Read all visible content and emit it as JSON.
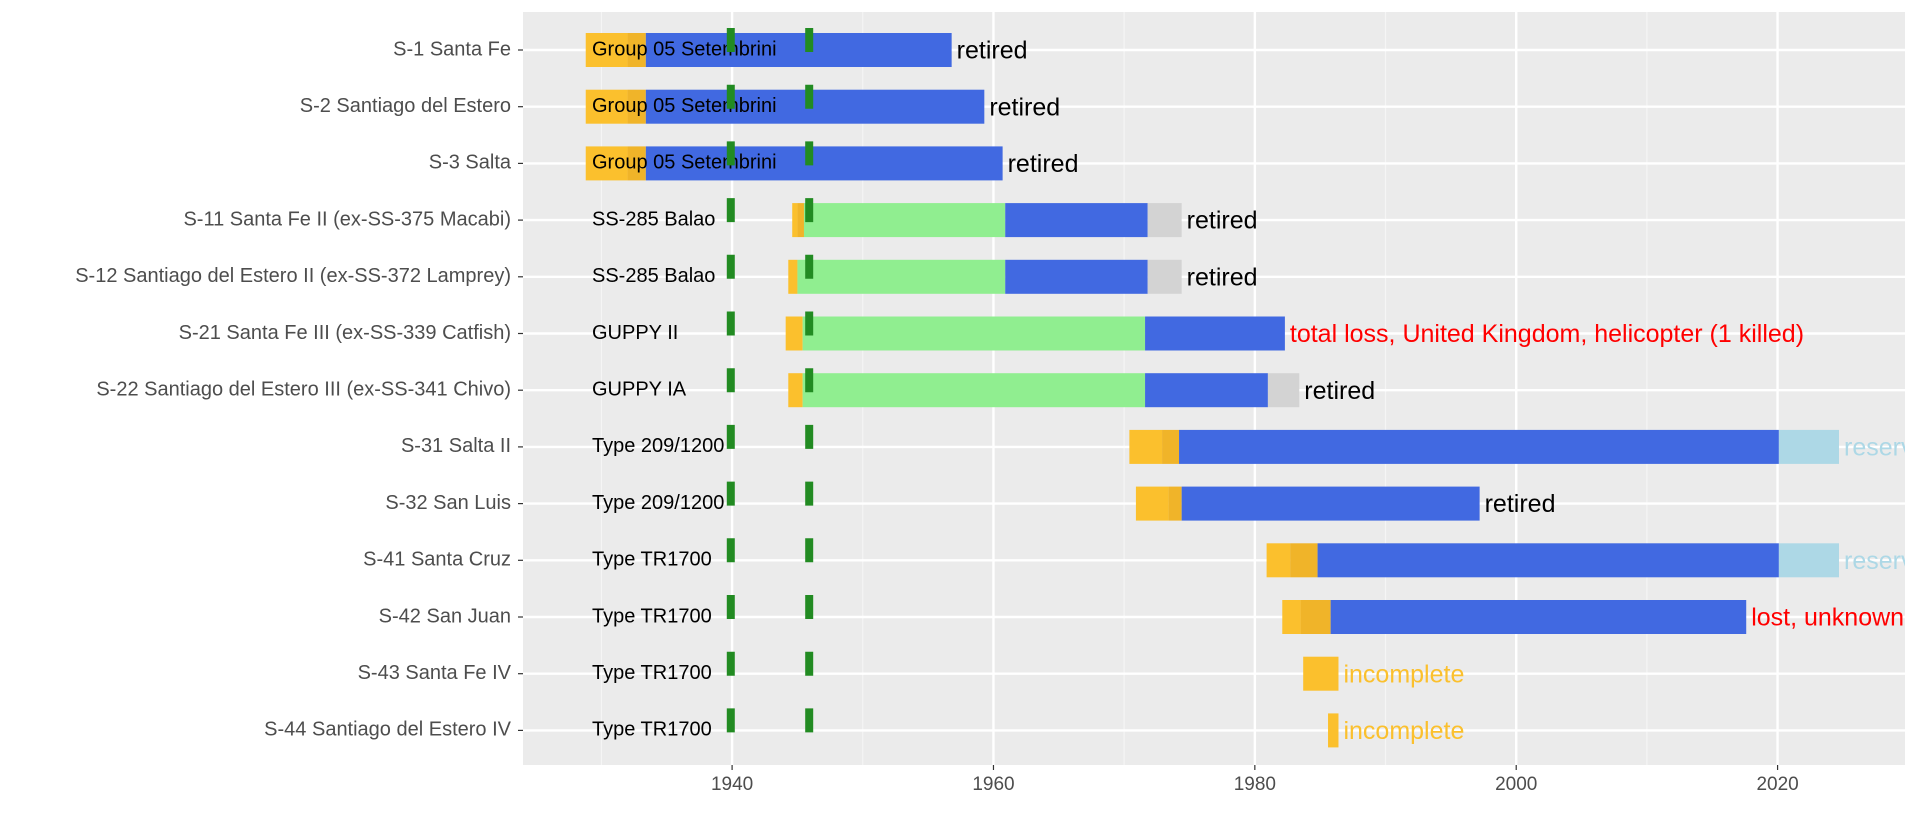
{
  "chart_data": {
    "type": "timeline",
    "xlim": [
      1924,
      2029.75
    ],
    "xticks": [
      1940,
      1960,
      1980,
      2000,
      2020
    ],
    "x_minor_grid": [
      1930,
      1950,
      1970,
      1990,
      2010
    ],
    "grid": true,
    "vlines": [
      {
        "value": 1939.9,
        "color": "#228b22"
      },
      {
        "value": 1945.9,
        "color": "#228b22"
      }
    ],
    "rows": [
      {
        "label": "S-1 Santa Fe",
        "class": "Group 05 Setembrini",
        "status": "retired",
        "status_color": "#000000",
        "segments": [
          {
            "start": 1928.8,
            "end": 1932.0,
            "color": "#fbc02d"
          },
          {
            "start": 1932.0,
            "end": 1933.4,
            "color": "#f0b429"
          },
          {
            "start": 1933.4,
            "end": 1956.8,
            "color": "#4169e1"
          }
        ]
      },
      {
        "label": "S-2 Santiago del Estero",
        "class": "Group 05 Setembrini",
        "status": "retired",
        "status_color": "#000000",
        "segments": [
          {
            "start": 1928.8,
            "end": 1932.0,
            "color": "#fbc02d"
          },
          {
            "start": 1932.0,
            "end": 1933.4,
            "color": "#f0b429"
          },
          {
            "start": 1933.4,
            "end": 1959.3,
            "color": "#4169e1"
          }
        ]
      },
      {
        "label": "S-3 Salta",
        "class": "Group 05 Setembrini",
        "status": "retired",
        "status_color": "#000000",
        "segments": [
          {
            "start": 1928.8,
            "end": 1932.0,
            "color": "#fbc02d"
          },
          {
            "start": 1932.0,
            "end": 1933.4,
            "color": "#f0b429"
          },
          {
            "start": 1933.4,
            "end": 1960.7,
            "color": "#4169e1"
          }
        ]
      },
      {
        "label": "S-11 Santa Fe II (ex-SS-375 Macabi)",
        "class": "SS-285 Balao",
        "status": "retired",
        "status_color": "#000000",
        "segments": [
          {
            "start": 1944.6,
            "end": 1945.0,
            "color": "#fbc02d"
          },
          {
            "start": 1945.0,
            "end": 1945.5,
            "color": "#f0b429"
          },
          {
            "start": 1945.5,
            "end": 1960.9,
            "color": "#90ee90"
          },
          {
            "start": 1960.9,
            "end": 1971.8,
            "color": "#4169e1"
          },
          {
            "start": 1971.8,
            "end": 1974.4,
            "color": "#d3d3d3"
          }
        ]
      },
      {
        "label": "S-12 Santiago del Estero II (ex-SS-372 Lamprey)",
        "class": "SS-285 Balao",
        "status": "retired",
        "status_color": "#000000",
        "segments": [
          {
            "start": 1944.3,
            "end": 1945.0,
            "color": "#fbc02d"
          },
          {
            "start": 1945.0,
            "end": 1960.9,
            "color": "#90ee90"
          },
          {
            "start": 1960.9,
            "end": 1971.8,
            "color": "#4169e1"
          },
          {
            "start": 1971.8,
            "end": 1974.4,
            "color": "#d3d3d3"
          }
        ]
      },
      {
        "label": "S-21 Santa Fe III (ex-SS-339 Catfish)",
        "class": "GUPPY II",
        "status": "total loss, United Kingdom, helicopter (1 killed)",
        "status_color": "#ff0000",
        "segments": [
          {
            "start": 1944.1,
            "end": 1945.4,
            "color": "#fbc02d"
          },
          {
            "start": 1945.4,
            "end": 1971.6,
            "color": "#90ee90"
          },
          {
            "start": 1971.6,
            "end": 1982.3,
            "color": "#4169e1"
          }
        ]
      },
      {
        "label": "S-22 Santiago del Estero III (ex-SS-341 Chivo)",
        "class": "GUPPY IA",
        "status": "retired",
        "status_color": "#000000",
        "segments": [
          {
            "start": 1944.3,
            "end": 1945.4,
            "color": "#fbc02d"
          },
          {
            "start": 1945.4,
            "end": 1971.6,
            "color": "#90ee90"
          },
          {
            "start": 1971.6,
            "end": 1981.0,
            "color": "#4169e1"
          },
          {
            "start": 1981.0,
            "end": 1983.4,
            "color": "#d3d3d3"
          }
        ]
      },
      {
        "label": "S-31 Salta II",
        "class": "Type 209/1200",
        "status": "reserve",
        "status_color": "#add8e6",
        "segments": [
          {
            "start": 1970.4,
            "end": 1972.9,
            "color": "#fbc02d"
          },
          {
            "start": 1972.9,
            "end": 1974.2,
            "color": "#f0b429"
          },
          {
            "start": 1974.2,
            "end": 2020.1,
            "color": "#4169e1"
          },
          {
            "start": 2020.1,
            "end": 2024.7,
            "color": "#add8e6"
          }
        ]
      },
      {
        "label": "S-32 San Luis",
        "class": "Type 209/1200",
        "status": "retired",
        "status_color": "#000000",
        "segments": [
          {
            "start": 1970.9,
            "end": 1973.4,
            "color": "#fbc02d"
          },
          {
            "start": 1973.4,
            "end": 1974.4,
            "color": "#f0b429"
          },
          {
            "start": 1974.4,
            "end": 1997.2,
            "color": "#4169e1"
          }
        ]
      },
      {
        "label": "S-41 Santa Cruz",
        "class": "Type TR1700",
        "status": "reserve",
        "status_color": "#add8e6",
        "segments": [
          {
            "start": 1980.9,
            "end": 1982.7,
            "color": "#fbc02d"
          },
          {
            "start": 1982.7,
            "end": 1984.8,
            "color": "#f0b429"
          },
          {
            "start": 1984.8,
            "end": 2020.1,
            "color": "#4169e1"
          },
          {
            "start": 2020.1,
            "end": 2024.7,
            "color": "#add8e6"
          }
        ]
      },
      {
        "label": "S-42 San Juan",
        "class": "Type TR1700",
        "status": "lost, unknown",
        "status_color": "#ff0000",
        "segments": [
          {
            "start": 1982.1,
            "end": 1983.5,
            "color": "#fbc02d"
          },
          {
            "start": 1983.5,
            "end": 1985.8,
            "color": "#f0b429"
          },
          {
            "start": 1985.8,
            "end": 2017.6,
            "color": "#4169e1"
          }
        ]
      },
      {
        "label": "S-43 Santa Fe IV",
        "class": "Type TR1700",
        "status": "incomplete",
        "status_color": "#fbc02d",
        "segments": [
          {
            "start": 1983.7,
            "end": 1986.4,
            "color": "#fbc02d"
          }
        ]
      },
      {
        "label": "S-44 Santiago del Estero IV",
        "class": "Type TR1700",
        "status": "incomplete",
        "status_color": "#fbc02d",
        "segments": [
          {
            "start": 1985.6,
            "end": 1986.4,
            "color": "#fbc02d"
          }
        ]
      }
    ]
  }
}
